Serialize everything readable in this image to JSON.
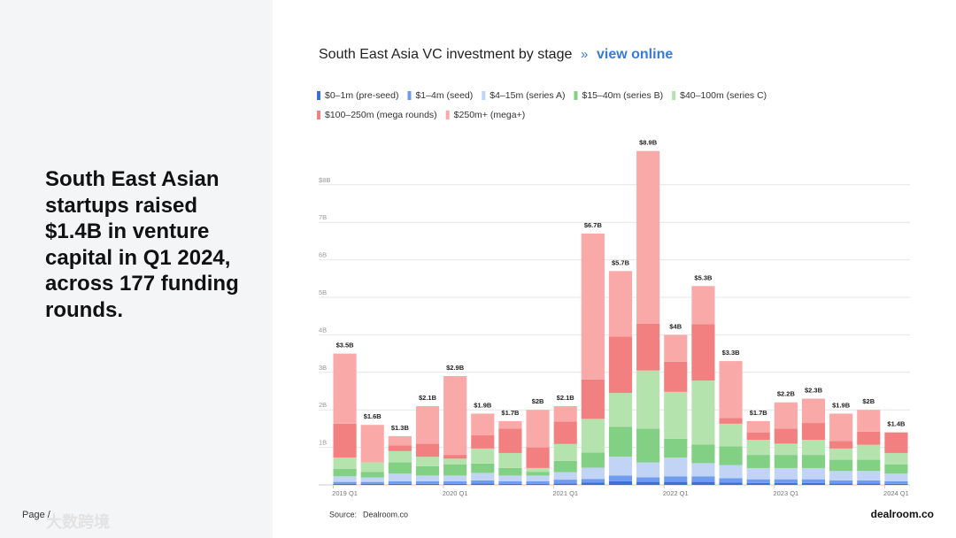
{
  "headline": [
    "South East Asian",
    "startups raised",
    "$1.4B in venture",
    "capital in Q1 2024,",
    "across 177 funding",
    "rounds."
  ],
  "page_label": "Page /",
  "watermark": "大数跨境",
  "source_label": "Source:",
  "source": "Dealroom.co",
  "logo": "dealroom.co",
  "chart_data": {
    "type": "stacked-bar",
    "title": "South East Asia VC investment by stage",
    "link_separator": "»",
    "link": "view online",
    "categories": [
      "2019 Q1",
      null,
      null,
      null,
      "2020 Q1",
      null,
      null,
      null,
      "2021 Q1",
      null,
      null,
      null,
      "2022 Q1",
      null,
      null,
      null,
      "2023 Q1",
      null,
      null,
      null,
      "2024 Q1"
    ],
    "series": [
      {
        "name": "$0–1m (pre-seed)",
        "color": "#3d6fd6",
        "values": [
          0.03,
          0.03,
          0.03,
          0.03,
          0.03,
          0.04,
          0.03,
          0.03,
          0.04,
          0.06,
          0.1,
          0.08,
          0.08,
          0.08,
          0.06,
          0.05,
          0.05,
          0.05,
          0.04,
          0.04,
          0.03
        ]
      },
      {
        "name": "$1–4m (seed)",
        "color": "#6f9cf0",
        "values": [
          0.05,
          0.05,
          0.07,
          0.07,
          0.07,
          0.08,
          0.07,
          0.07,
          0.1,
          0.1,
          0.15,
          0.12,
          0.15,
          0.15,
          0.12,
          0.1,
          0.1,
          0.1,
          0.08,
          0.08,
          0.07
        ]
      },
      {
        "name": "$4–15m (series A)",
        "color": "#c2d4f6",
        "values": [
          0.15,
          0.12,
          0.2,
          0.15,
          0.15,
          0.2,
          0.15,
          0.15,
          0.2,
          0.3,
          0.5,
          0.4,
          0.5,
          0.35,
          0.35,
          0.3,
          0.3,
          0.3,
          0.25,
          0.25,
          0.2
        ]
      },
      {
        "name": "$15–40m (series B)",
        "color": "#82d083",
        "values": [
          0.2,
          0.15,
          0.3,
          0.25,
          0.3,
          0.25,
          0.2,
          0.1,
          0.3,
          0.4,
          0.8,
          0.9,
          0.5,
          0.5,
          0.5,
          0.35,
          0.35,
          0.35,
          0.3,
          0.3,
          0.25
        ]
      },
      {
        "name": "$40–100m (series C)",
        "color": "#b4e3ad",
        "values": [
          0.3,
          0.25,
          0.3,
          0.25,
          0.15,
          0.4,
          0.4,
          0.1,
          0.45,
          0.9,
          0.9,
          1.55,
          1.25,
          1.7,
          0.6,
          0.4,
          0.3,
          0.4,
          0.3,
          0.4,
          0.3
        ]
      },
      {
        "name": "$100–250m (mega rounds)",
        "color": "#f28080",
        "values": [
          0.9,
          0,
          0.15,
          0.35,
          0.1,
          0.35,
          0.65,
          0.55,
          0.6,
          1.05,
          1.5,
          1.25,
          0.8,
          1.5,
          0.15,
          0.2,
          0.4,
          0.45,
          0.2,
          0.35,
          0.55
        ]
      },
      {
        "name": "$250m+ (mega+)",
        "color": "#f9aaa8",
        "values": [
          1.87,
          1.0,
          0.25,
          1.0,
          2.1,
          0.58,
          0.2,
          1.0,
          0.41,
          3.89,
          1.75,
          4.6,
          0.72,
          1.02,
          1.52,
          0.3,
          0.7,
          0.65,
          0.73,
          0.58,
          0
        ]
      }
    ],
    "totals": {
      "values": [
        3.5,
        1.6,
        1.3,
        2.1,
        2.9,
        1.9,
        1.7,
        2,
        2.1,
        6.7,
        5.7,
        8.9,
        4,
        5.3,
        3.3,
        1.7,
        2.2,
        2.3,
        1.9,
        2,
        1.4
      ],
      "value_labels": [
        "$3.5B",
        "$1.6B",
        "$1.3B",
        "$2.1B",
        "$2.9B",
        "$1.9B",
        "$1.7B",
        "$2B",
        "$2.1B",
        "$6.7B",
        "$5.7B",
        "$8.9B",
        "$4B",
        "$5.3B",
        "$3.3B",
        "$1.7B",
        "$2.2B",
        "$2.3B",
        "$1.9B",
        "$2B",
        "$1.4B"
      ]
    },
    "ylim": [
      0,
      9.2
    ],
    "yticks": [
      {
        "value": 1,
        "label": "1B"
      },
      {
        "value": 2,
        "label": "2B"
      },
      {
        "value": 3,
        "label": "3B"
      },
      {
        "value": 4,
        "label": "4B"
      },
      {
        "value": 5,
        "label": "5B"
      },
      {
        "value": 6,
        "label": "6B"
      },
      {
        "value": 7,
        "label": "7B"
      },
      {
        "value": 8,
        "label": "$8B"
      }
    ],
    "grid": true
  }
}
